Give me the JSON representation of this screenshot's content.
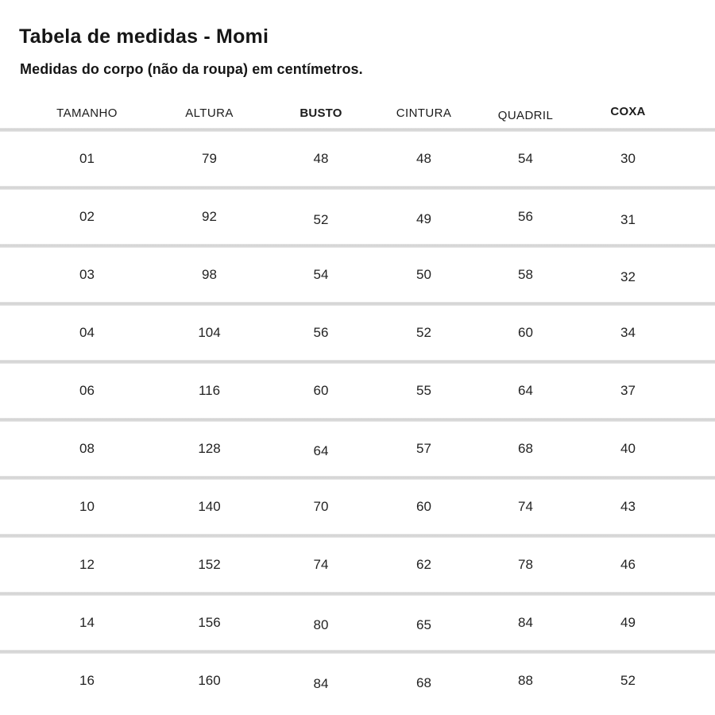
{
  "header": {
    "title": "Tabela de medidas - Momi",
    "subtitle": "Medidas do corpo (não da roupa) em centímetros."
  },
  "table": {
    "columns": [
      {
        "label": "TAMANHO",
        "bold": false
      },
      {
        "label": "ALTURA",
        "bold": false
      },
      {
        "label": "BUSTO",
        "bold": true
      },
      {
        "label": "CINTURA",
        "bold": false
      },
      {
        "label": "QUADRIL",
        "bold": false
      },
      {
        "label": "COXA",
        "bold": true
      }
    ],
    "unit": "cm",
    "rows": [
      {
        "tamanho": "01",
        "altura": "79",
        "busto": "48",
        "cintura": "48",
        "quadril": "54",
        "coxa": "30"
      },
      {
        "tamanho": "02",
        "altura": "92",
        "busto": "52",
        "cintura": "49",
        "quadril": "56",
        "coxa": "31"
      },
      {
        "tamanho": "03",
        "altura": "98",
        "busto": "54",
        "cintura": "50",
        "quadril": "58",
        "coxa": "32"
      },
      {
        "tamanho": "04",
        "altura": "104",
        "busto": "56",
        "cintura": "52",
        "quadril": "60",
        "coxa": "34"
      },
      {
        "tamanho": "06",
        "altura": "116",
        "busto": "60",
        "cintura": "55",
        "quadril": "64",
        "coxa": "37"
      },
      {
        "tamanho": "08",
        "altura": "128",
        "busto": "64",
        "cintura": "57",
        "quadril": "68",
        "coxa": "40"
      },
      {
        "tamanho": "10",
        "altura": "140",
        "busto": "70",
        "cintura": "60",
        "quadril": "74",
        "coxa": "43"
      },
      {
        "tamanho": "12",
        "altura": "152",
        "busto": "74",
        "cintura": "62",
        "quadril": "78",
        "coxa": "46"
      },
      {
        "tamanho": "14",
        "altura": "156",
        "busto": "80",
        "cintura": "65",
        "quadril": "84",
        "coxa": "49"
      },
      {
        "tamanho": "16",
        "altura": "160",
        "busto": "84",
        "cintura": "68",
        "quadril": "88",
        "coxa": "52"
      }
    ]
  },
  "colors": {
    "background": "#ffffff",
    "text": "#1f1f1f",
    "divider": "#d6d6d6"
  }
}
